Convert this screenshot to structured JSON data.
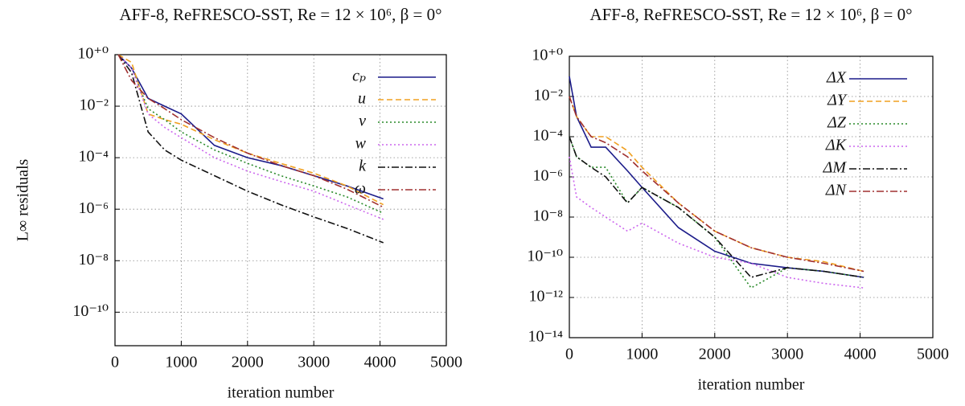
{
  "chart_data": [
    {
      "type": "line",
      "title": "AFF-8, ReFRESCO-SST, Re = 12 × 10⁶, β = 0°",
      "x_label": "iteration number",
      "y_label": "L∞ residuals",
      "log_y": true,
      "grid": true,
      "xlim": [
        0,
        5000
      ],
      "xticks": [
        0,
        1000,
        2000,
        3000,
        4000,
        5000
      ],
      "ylim": [
        5e-12,
        1
      ],
      "yticks": [
        {
          "value": 1,
          "label": "10⁺⁰"
        },
        {
          "value": 0.01,
          "label": "10⁻²"
        },
        {
          "value": 0.0001,
          "label": "10⁻⁴"
        },
        {
          "value": 1e-06,
          "label": "10⁻⁶"
        },
        {
          "value": 1e-08,
          "label": "10⁻⁸"
        },
        {
          "value": 1e-10,
          "label": "10⁻¹⁰"
        }
      ],
      "x": [
        50,
        250,
        500,
        750,
        1000,
        1500,
        2000,
        2500,
        3000,
        3500,
        4050
      ],
      "series": [
        {
          "name": "cₚ",
          "color": "#1c1c8a",
          "style": "solid",
          "values": [
            1,
            0.3,
            0.02,
            0.01,
            0.005,
            0.0003,
            0.0001,
            5e-05,
            2e-05,
            8e-06,
            2.5e-06
          ]
        },
        {
          "name": "u",
          "color": "#f0a020",
          "style": "dashed",
          "values": [
            1,
            0.5,
            0.005,
            0.003,
            0.002,
            0.0005,
            0.00015,
            6e-05,
            2.5e-05,
            8e-06,
            1.5e-06
          ]
        },
        {
          "name": "v",
          "color": "#2a8a2a",
          "style": "dotted",
          "values": [
            1,
            0.3,
            0.008,
            0.003,
            0.001,
            0.0002,
            6e-05,
            2e-05,
            8e-06,
            3e-06,
            7e-07
          ]
        },
        {
          "name": "w",
          "color": "#cc66ee",
          "style": "dotted",
          "values": [
            1,
            0.3,
            0.005,
            0.0015,
            0.0006,
            0.0001,
            3e-05,
            1.2e-05,
            5e-06,
            1.5e-06,
            4e-07
          ]
        },
        {
          "name": "k",
          "color": "#111111",
          "style": "dashdot",
          "values": [
            1,
            0.2,
            0.001,
            0.0002,
            8e-05,
            2e-05,
            5e-06,
            1.5e-06,
            5e-07,
            1.8e-07,
            5e-08
          ]
        },
        {
          "name": "ω",
          "color": "#a03030",
          "style": "dashdot",
          "values": [
            1,
            0.1,
            0.02,
            0.008,
            0.003,
            0.0006,
            0.00015,
            5e-05,
            2e-05,
            6e-06,
            1.2e-06
          ]
        }
      ]
    },
    {
      "type": "line",
      "title": "AFF-8, ReFRESCO-SST, Re = 12 × 10⁶, β = 0°",
      "x_label": "iteration number",
      "log_y": true,
      "grid": true,
      "xlim": [
        0,
        5000
      ],
      "xticks": [
        0,
        1000,
        2000,
        3000,
        4000,
        5000
      ],
      "ylim": [
        1e-14,
        1
      ],
      "yticks": [
        {
          "value": 1,
          "label": "10⁺⁰"
        },
        {
          "value": 0.01,
          "label": "10⁻²"
        },
        {
          "value": 0.0001,
          "label": "10⁻⁴"
        },
        {
          "value": 1e-06,
          "label": "10⁻⁶"
        },
        {
          "value": 1e-08,
          "label": "10⁻⁸"
        },
        {
          "value": 1e-10,
          "label": "10⁻¹⁰"
        },
        {
          "value": 1e-12,
          "label": "10⁻¹²"
        },
        {
          "value": 1e-14,
          "label": "10⁻¹⁴"
        }
      ],
      "x": [
        0,
        100,
        300,
        500,
        800,
        1000,
        1500,
        2000,
        2500,
        3000,
        3500,
        4050
      ],
      "series": [
        {
          "name": "ΔX",
          "color": "#1c1c8a",
          "style": "solid",
          "values": [
            0.1,
            0.001,
            3e-05,
            3e-05,
            2e-06,
            3e-07,
            3e-09,
            2e-10,
            5e-11,
            3e-11,
            2e-11,
            1e-11
          ]
        },
        {
          "name": "ΔY",
          "color": "#f0a020",
          "style": "dashed",
          "values": [
            0.01,
            0.001,
            0.0001,
            0.0001,
            2e-05,
            3e-06,
            5e-08,
            2e-09,
            3e-10,
            1e-10,
            6e-11,
            2e-11
          ]
        },
        {
          "name": "ΔZ",
          "color": "#2a8a2a",
          "style": "dotted",
          "values": [
            0.0001,
            1e-05,
            3e-06,
            3e-06,
            5e-08,
            3e-07,
            3e-08,
            1e-09,
            3e-12,
            3e-11,
            2e-11,
            1e-11
          ]
        },
        {
          "name": "ΔK",
          "color": "#cc66ee",
          "style": "dotted",
          "values": [
            1e-05,
            1e-07,
            3e-08,
            1e-08,
            2e-09,
            5e-09,
            5e-10,
            1e-10,
            5e-11,
            1e-11,
            5e-12,
            3e-12
          ]
        },
        {
          "name": "ΔM",
          "color": "#111111",
          "style": "dashdot",
          "values": [
            0.0001,
            1e-05,
            3e-06,
            1e-06,
            5e-08,
            3e-07,
            3e-08,
            1e-09,
            1e-11,
            3e-11,
            2e-11,
            1e-11
          ]
        },
        {
          "name": "ΔN",
          "color": "#a03030",
          "style": "dashdot",
          "values": [
            0.01,
            0.001,
            0.0001,
            5e-05,
            1e-05,
            2e-06,
            5e-08,
            2e-09,
            3e-10,
            1e-10,
            5e-11,
            2e-11
          ]
        }
      ]
    }
  ]
}
